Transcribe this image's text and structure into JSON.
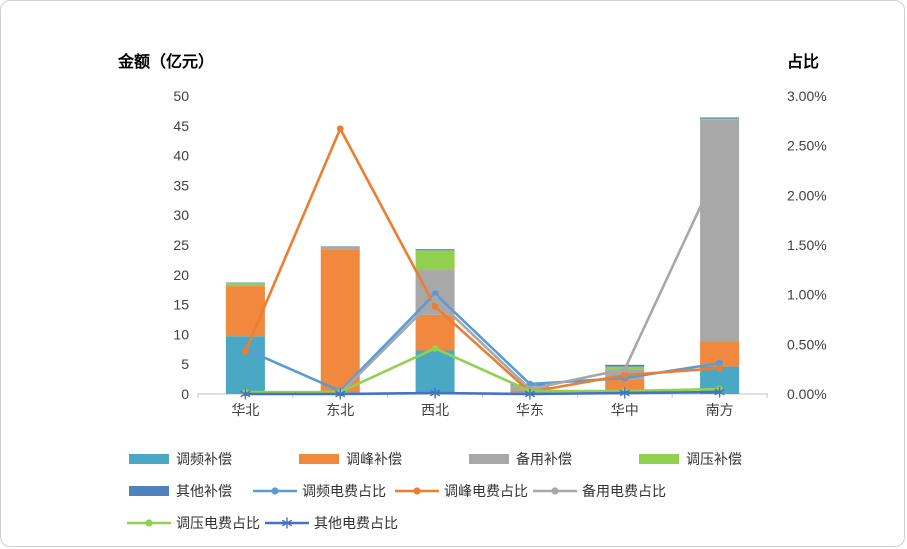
{
  "card": {
    "left_axis_title": "金额（亿元）",
    "right_axis_title": "占比"
  },
  "chart_data": {
    "type": "bar",
    "subtype": "stacked-bars-with-lines",
    "categories": [
      "华北",
      "东北",
      "西北",
      "华东",
      "华中",
      "南方"
    ],
    "series": [
      {
        "name": "调频补偿",
        "color": "#4BA8C4",
        "values": [
          9.7,
          0.3,
          7.3,
          0.3,
          0.6,
          4.6
        ]
      },
      {
        "name": "调峰补偿",
        "color": "#F0883E",
        "values": [
          8.4,
          24.0,
          6.0,
          0.3,
          1.9,
          4.2
        ]
      },
      {
        "name": "备用补偿",
        "color": "#A8A8A8",
        "values": [
          0.1,
          0.5,
          7.5,
          0.7,
          1.6,
          37.2
        ]
      },
      {
        "name": "调压补偿",
        "color": "#92D050",
        "values": [
          0.4,
          0.0,
          3.3,
          0.1,
          0.5,
          0.2
        ]
      },
      {
        "name": "其他补偿",
        "color": "#4F81BD",
        "values": [
          0.1,
          0.0,
          0.2,
          0.2,
          0.3,
          0.2
        ]
      }
    ],
    "line_series": [
      {
        "name": "调频电费占比",
        "color": "#5B9BD5",
        "marker": "dot",
        "values": [
          0.45,
          0.03,
          1.01,
          0.1,
          0.16,
          0.31
        ]
      },
      {
        "name": "调峰电费占比",
        "color": "#ED7D31",
        "marker": "dot",
        "values": [
          0.43,
          2.67,
          0.88,
          0.02,
          0.19,
          0.26
        ]
      },
      {
        "name": "备用电费占比",
        "color": "#A8A8A8",
        "marker": "dot",
        "values": [
          0.01,
          0.01,
          0.96,
          0.05,
          0.25,
          2.3
        ]
      },
      {
        "name": "调压电费占比",
        "color": "#92D050",
        "marker": "dot",
        "values": [
          0.02,
          0.02,
          0.46,
          0.03,
          0.03,
          0.05
        ]
      },
      {
        "name": "其他电费占比",
        "color": "#4472C4",
        "marker": "asterisk",
        "values": [
          0.0,
          0.0,
          0.01,
          0.0,
          0.01,
          0.02
        ]
      }
    ],
    "left_axis": {
      "title": "金额（亿元）",
      "min": 0,
      "max": 50,
      "step": 5,
      "tick_labels": [
        "0",
        "5",
        "10",
        "15",
        "20",
        "25",
        "30",
        "35",
        "40",
        "45",
        "50"
      ]
    },
    "right_axis": {
      "title": "占比",
      "min": 0,
      "max": 3,
      "step": 0.5,
      "format": "percent",
      "tick_labels": [
        "0.00%",
        "0.50%",
        "1.00%",
        "1.50%",
        "2.00%",
        "2.50%",
        "3.00%"
      ]
    },
    "grid": false,
    "legend_position": "bottom",
    "legend_rows": [
      [
        "调频补偿",
        "调峰补偿",
        "备用补偿",
        "调压补偿"
      ],
      [
        "其他补偿",
        "调频电费占比",
        "调峰电费占比",
        "备用电费占比"
      ],
      [
        "调压电费占比",
        "其他电费占比"
      ]
    ]
  }
}
